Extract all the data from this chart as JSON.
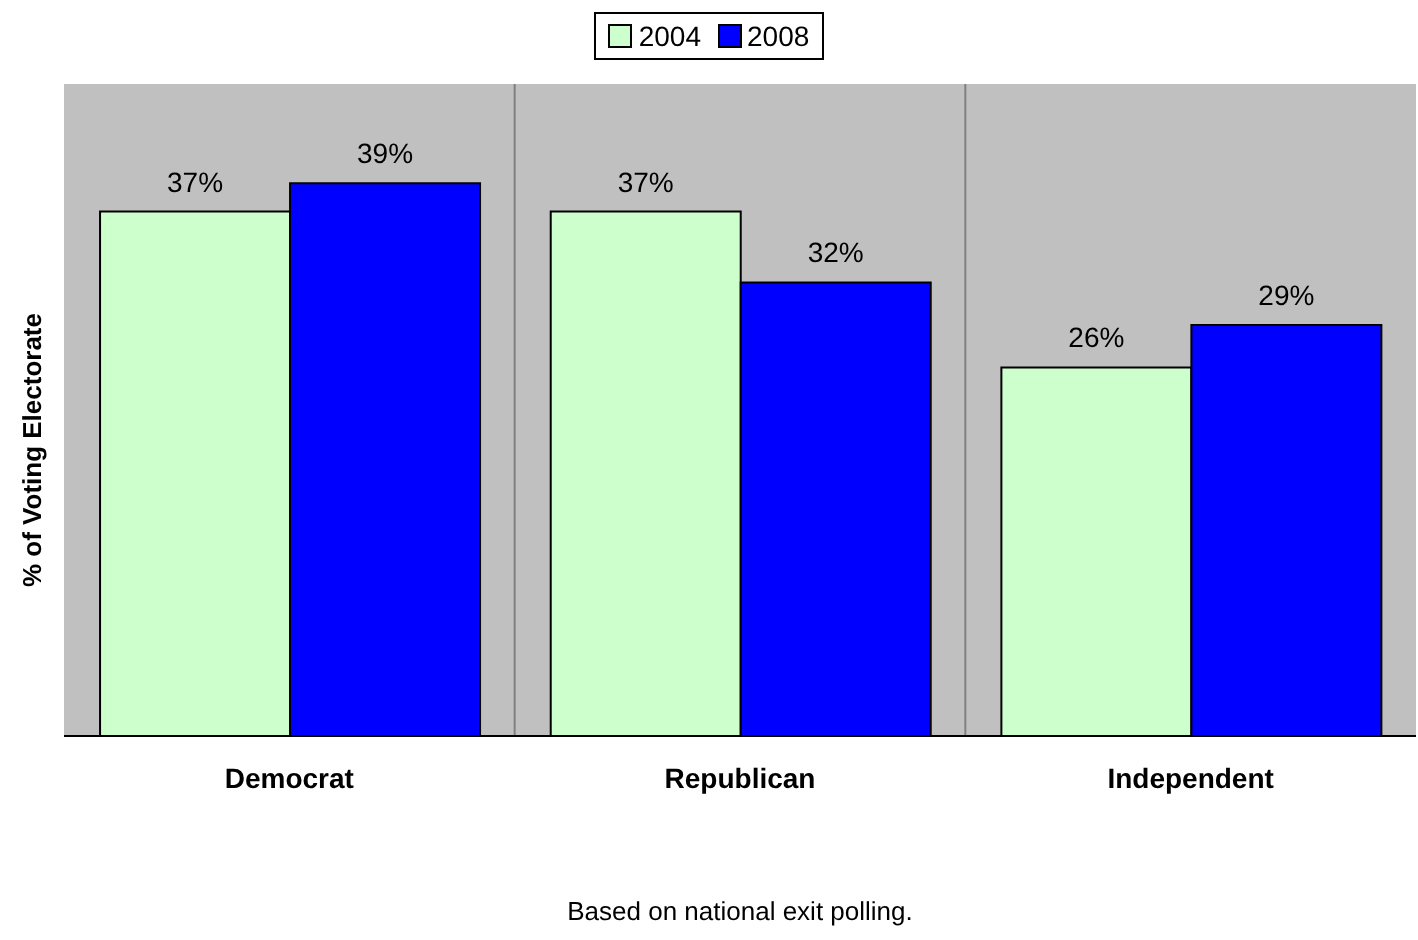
{
  "chart_data": {
    "type": "bar",
    "ylabel": "% of Voting Electorate",
    "annotations": [
      "Based on national exit polling."
    ],
    "categories": [
      "Democrat",
      "Republican",
      "Independent"
    ],
    "series": [
      {
        "name": "2004",
        "color": "#ccffcc",
        "values": [
          37,
          37,
          26
        ],
        "value_labels": [
          "37%",
          "37%",
          "26%"
        ]
      },
      {
        "name": "2008",
        "color": "#0000ff",
        "values": [
          39,
          32,
          29
        ],
        "value_labels": [
          "39%",
          "32%",
          "29%"
        ]
      }
    ],
    "ylim": [
      0,
      46
    ],
    "tick_labels": "x",
    "grid": "x",
    "legend": "top"
  }
}
